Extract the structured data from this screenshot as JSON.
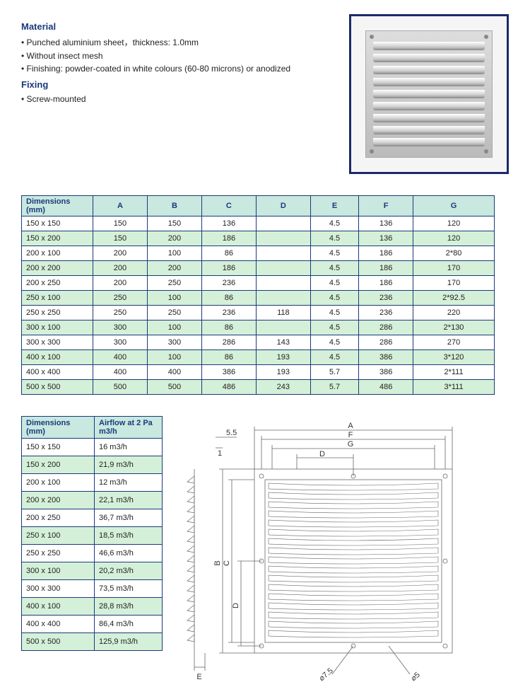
{
  "material": {
    "title": "Material",
    "bullets": [
      "• Punched aluminium sheet，thickness: 1.0mm",
      "• Without insect mesh",
      "• Finishing: powder-coated in white colours (60-80 microns) or anodized"
    ]
  },
  "fixing": {
    "title": "Fixing",
    "bullet": "• Screw-mounted"
  },
  "colors": {
    "header_bg": "#c8e8e0",
    "row_even": "#d5f0d8",
    "border": "#1a3a7a",
    "title_text": "#1a3a7a"
  },
  "dimensions_table": {
    "header_label": "Dimensions (mm)",
    "columns": [
      "A",
      "B",
      "C",
      "D",
      "E",
      "F",
      "G"
    ],
    "rows": [
      {
        "dim": "150 x 150",
        "A": "150",
        "B": "150",
        "C": "136",
        "D": "",
        "E": "4.5",
        "F": "136",
        "G": "120"
      },
      {
        "dim": "150 x 200",
        "A": "150",
        "B": "200",
        "C": "186",
        "D": "",
        "E": "4.5",
        "F": "136",
        "G": "120"
      },
      {
        "dim": "200 x 100",
        "A": "200",
        "B": "100",
        "C": "86",
        "D": "",
        "E": "4.5",
        "F": "186",
        "G": "2*80"
      },
      {
        "dim": "200 x 200",
        "A": "200",
        "B": "200",
        "C": "186",
        "D": "",
        "E": "4.5",
        "F": "186",
        "G": "170"
      },
      {
        "dim": "200 x 250",
        "A": "200",
        "B": "250",
        "C": "236",
        "D": "",
        "E": "4.5",
        "F": "186",
        "G": "170"
      },
      {
        "dim": "250 x 100",
        "A": "250",
        "B": "100",
        "C": "86",
        "D": "",
        "E": "4.5",
        "F": "236",
        "G": "2*92.5"
      },
      {
        "dim": "250 x 250",
        "A": "250",
        "B": "250",
        "C": "236",
        "D": "118",
        "E": "4.5",
        "F": "236",
        "G": "220"
      },
      {
        "dim": "300 x 100",
        "A": "300",
        "B": "100",
        "C": "86",
        "D": "",
        "E": "4.5",
        "F": "286",
        "G": "2*130"
      },
      {
        "dim": "300 x 300",
        "A": "300",
        "B": "300",
        "C": "286",
        "D": "143",
        "E": "4.5",
        "F": "286",
        "G": "270"
      },
      {
        "dim": "400 x 100",
        "A": "400",
        "B": "100",
        "C": "86",
        "D": "193",
        "E": "4.5",
        "F": "386",
        "G": "3*120"
      },
      {
        "dim": "400 x 400",
        "A": "400",
        "B": "400",
        "C": "386",
        "D": "193",
        "E": "5.7",
        "F": "386",
        "G": "2*111"
      },
      {
        "dim": "500 x 500",
        "A": "500",
        "B": "500",
        "C": "486",
        "D": "243",
        "E": "5.7",
        "F": "486",
        "G": "3*111"
      }
    ]
  },
  "airflow_table": {
    "header_dim": "Dimensions (mm)",
    "header_flow": "Airflow at 2 Pa m3/h",
    "rows": [
      {
        "dim": "150 x 150",
        "flow": "16 m3/h"
      },
      {
        "dim": "150 x 200",
        "flow": "21,9 m3/h"
      },
      {
        "dim": "200 x 100",
        "flow": "12 m3/h"
      },
      {
        "dim": "200 x 200",
        "flow": "22,1 m3/h"
      },
      {
        "dim": "200 x 250",
        "flow": "36,7 m3/h"
      },
      {
        "dim": "250 x 100",
        "flow": "18,5 m3/h"
      },
      {
        "dim": "250 x 250",
        "flow": "46,6 m3/h"
      },
      {
        "dim": "300 x 100",
        "flow": "20,2 m3/h"
      },
      {
        "dim": "300 x 300",
        "flow": "73,5 m3/h"
      },
      {
        "dim": "400 x 100",
        "flow": "28,8 m3/h"
      },
      {
        "dim": "400 x 400",
        "flow": "86,4 m3/h"
      },
      {
        "dim": "500 x 500",
        "flow": "125,9 m3/h"
      }
    ]
  },
  "diagram": {
    "labels": {
      "A": "A",
      "B": "B",
      "C": "C",
      "D": "D",
      "E": "E",
      "F": "F",
      "G": "G",
      "d1": "5.5",
      "d2": "1",
      "d3": "⌀7.5",
      "d4": "⌀5"
    },
    "line_color": "#666666",
    "line_width": 0.8
  }
}
